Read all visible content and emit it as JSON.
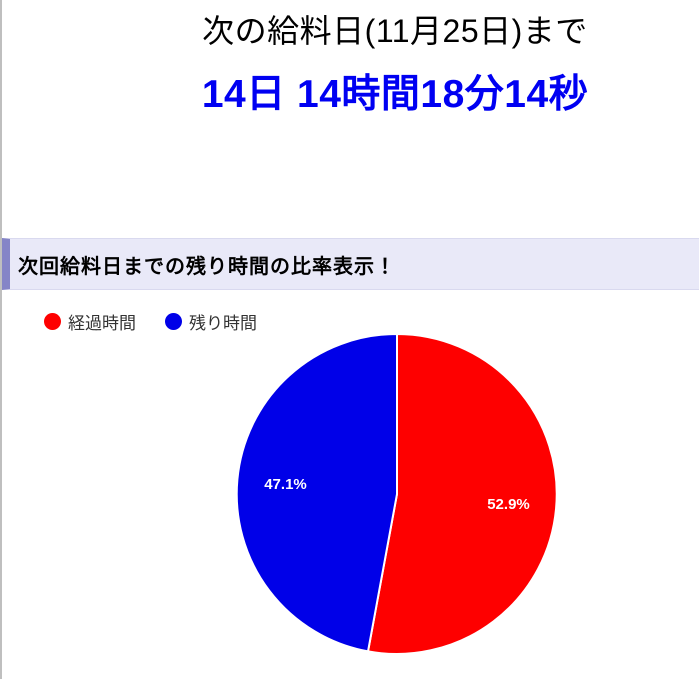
{
  "page": {
    "title": "次の給料日(11月25日)まで",
    "countdown": "14日 14時間18分14秒",
    "section_heading": "次回給料日までの残り時間の比率表示！"
  },
  "colors": {
    "countdown_text": "#0000f2",
    "heading_background": "#e9e9f8",
    "heading_left_border": "#8585c7",
    "page_left_border": "#bfbfbf"
  },
  "chart_data": {
    "type": "pie",
    "title": "次回給料日までの残り時間の比率表示！",
    "labels": [
      "経過時間",
      "残り時間"
    ],
    "values_percent": [
      52.9,
      47.1
    ],
    "slice_labels": [
      "52.9%",
      "47.1%"
    ],
    "colors": [
      "#fe0000",
      "#0000e8"
    ],
    "slice_label_color": "#ffffff",
    "legend_position": "top-left",
    "legend_marker": "circle",
    "start_angle_deg": 0,
    "direction": "clockwise"
  }
}
